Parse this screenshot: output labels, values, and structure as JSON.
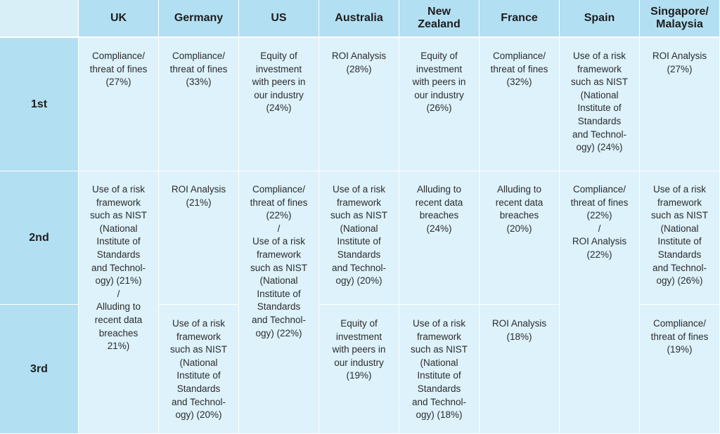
{
  "header": {
    "countries": [
      "UK",
      "Germany",
      "US",
      "Australia",
      "New\nZealand",
      "France",
      "Spain",
      "Singapore/\nMalaysia"
    ]
  },
  "ranks": [
    "1st",
    "2nd",
    "3rd"
  ],
  "cells": {
    "first": {
      "uk": "Compliance/\nthreat of fines\n(27%)",
      "germany": "Compliance/\nthreat of fines\n(33%)",
      "us": "Equity of\ninvestment\nwith peers in\nour industry\n(24%)",
      "australia": "ROI Analysis\n(28%)",
      "new_zealand": "Equity of\ninvestment\nwith peers in\nour industry\n(26%)",
      "france": "Compliance/\nthreat of fines\n(32%)",
      "spain": "Use of a risk\nframework\nsuch as NIST\n(National\nInstitute of\nStandards\nand Technol-\nogy) (24%)",
      "singapore_malaysia": "ROI Analysis\n(27%)"
    },
    "second": {
      "uk_2nd_3rd": "Use of a risk\nframework\nsuch as NIST\n(National\nInstitute of\nStandards\nand Technol-\nogy) (21%)\n/\nAlluding to\nrecent data\nbreaches\n21%)",
      "germany": "ROI Analysis\n(21%)",
      "us_2nd_3rd": "Compliance/\nthreat of fines\n(22%)\n/\nUse of a risk\nframework\nsuch as NIST\n(National\nInstitute of\nStandards\nand Technol-\nogy) (22%)",
      "australia": "Use of a risk\nframework\nsuch as NIST\n(National\nInstitute of\nStandards\nand Technol-\nogy) (20%)",
      "new_zealand": "Alluding to\nrecent data\nbreaches\n(24%)",
      "france": "Alluding to\nrecent data\nbreaches\n(20%)",
      "spain_2nd_3rd": "Compliance/\nthreat of fines\n(22%)\n/\nROI Analysis\n(22%)",
      "singapore_malaysia": "Use of a risk\nframework\nsuch as NIST\n(National\nInstitute of\nStandards\nand Technol-\nogy) (26%)"
    },
    "third": {
      "germany": "Use of a risk\nframework\nsuch as NIST\n(National\nInstitute of\nStandards\nand Technol-\nogy) (20%)",
      "australia": "Equity of\ninvestment\nwith peers in\nour industry\n(19%)",
      "new_zealand": "Use of a risk\nframework\nsuch as NIST\n(National\nInstitute of\nStandards\nand Technol-\nogy) (18%)",
      "france": "ROI Analysis\n(18%)",
      "singapore_malaysia": "Compliance/\nthreat of fines\n(19%)"
    }
  },
  "colors": {
    "header_bg": "#b3dff2",
    "cell_bg": "#ddf2fb",
    "corner_bg": "#d9eff8",
    "text": "#2c2c2c"
  }
}
